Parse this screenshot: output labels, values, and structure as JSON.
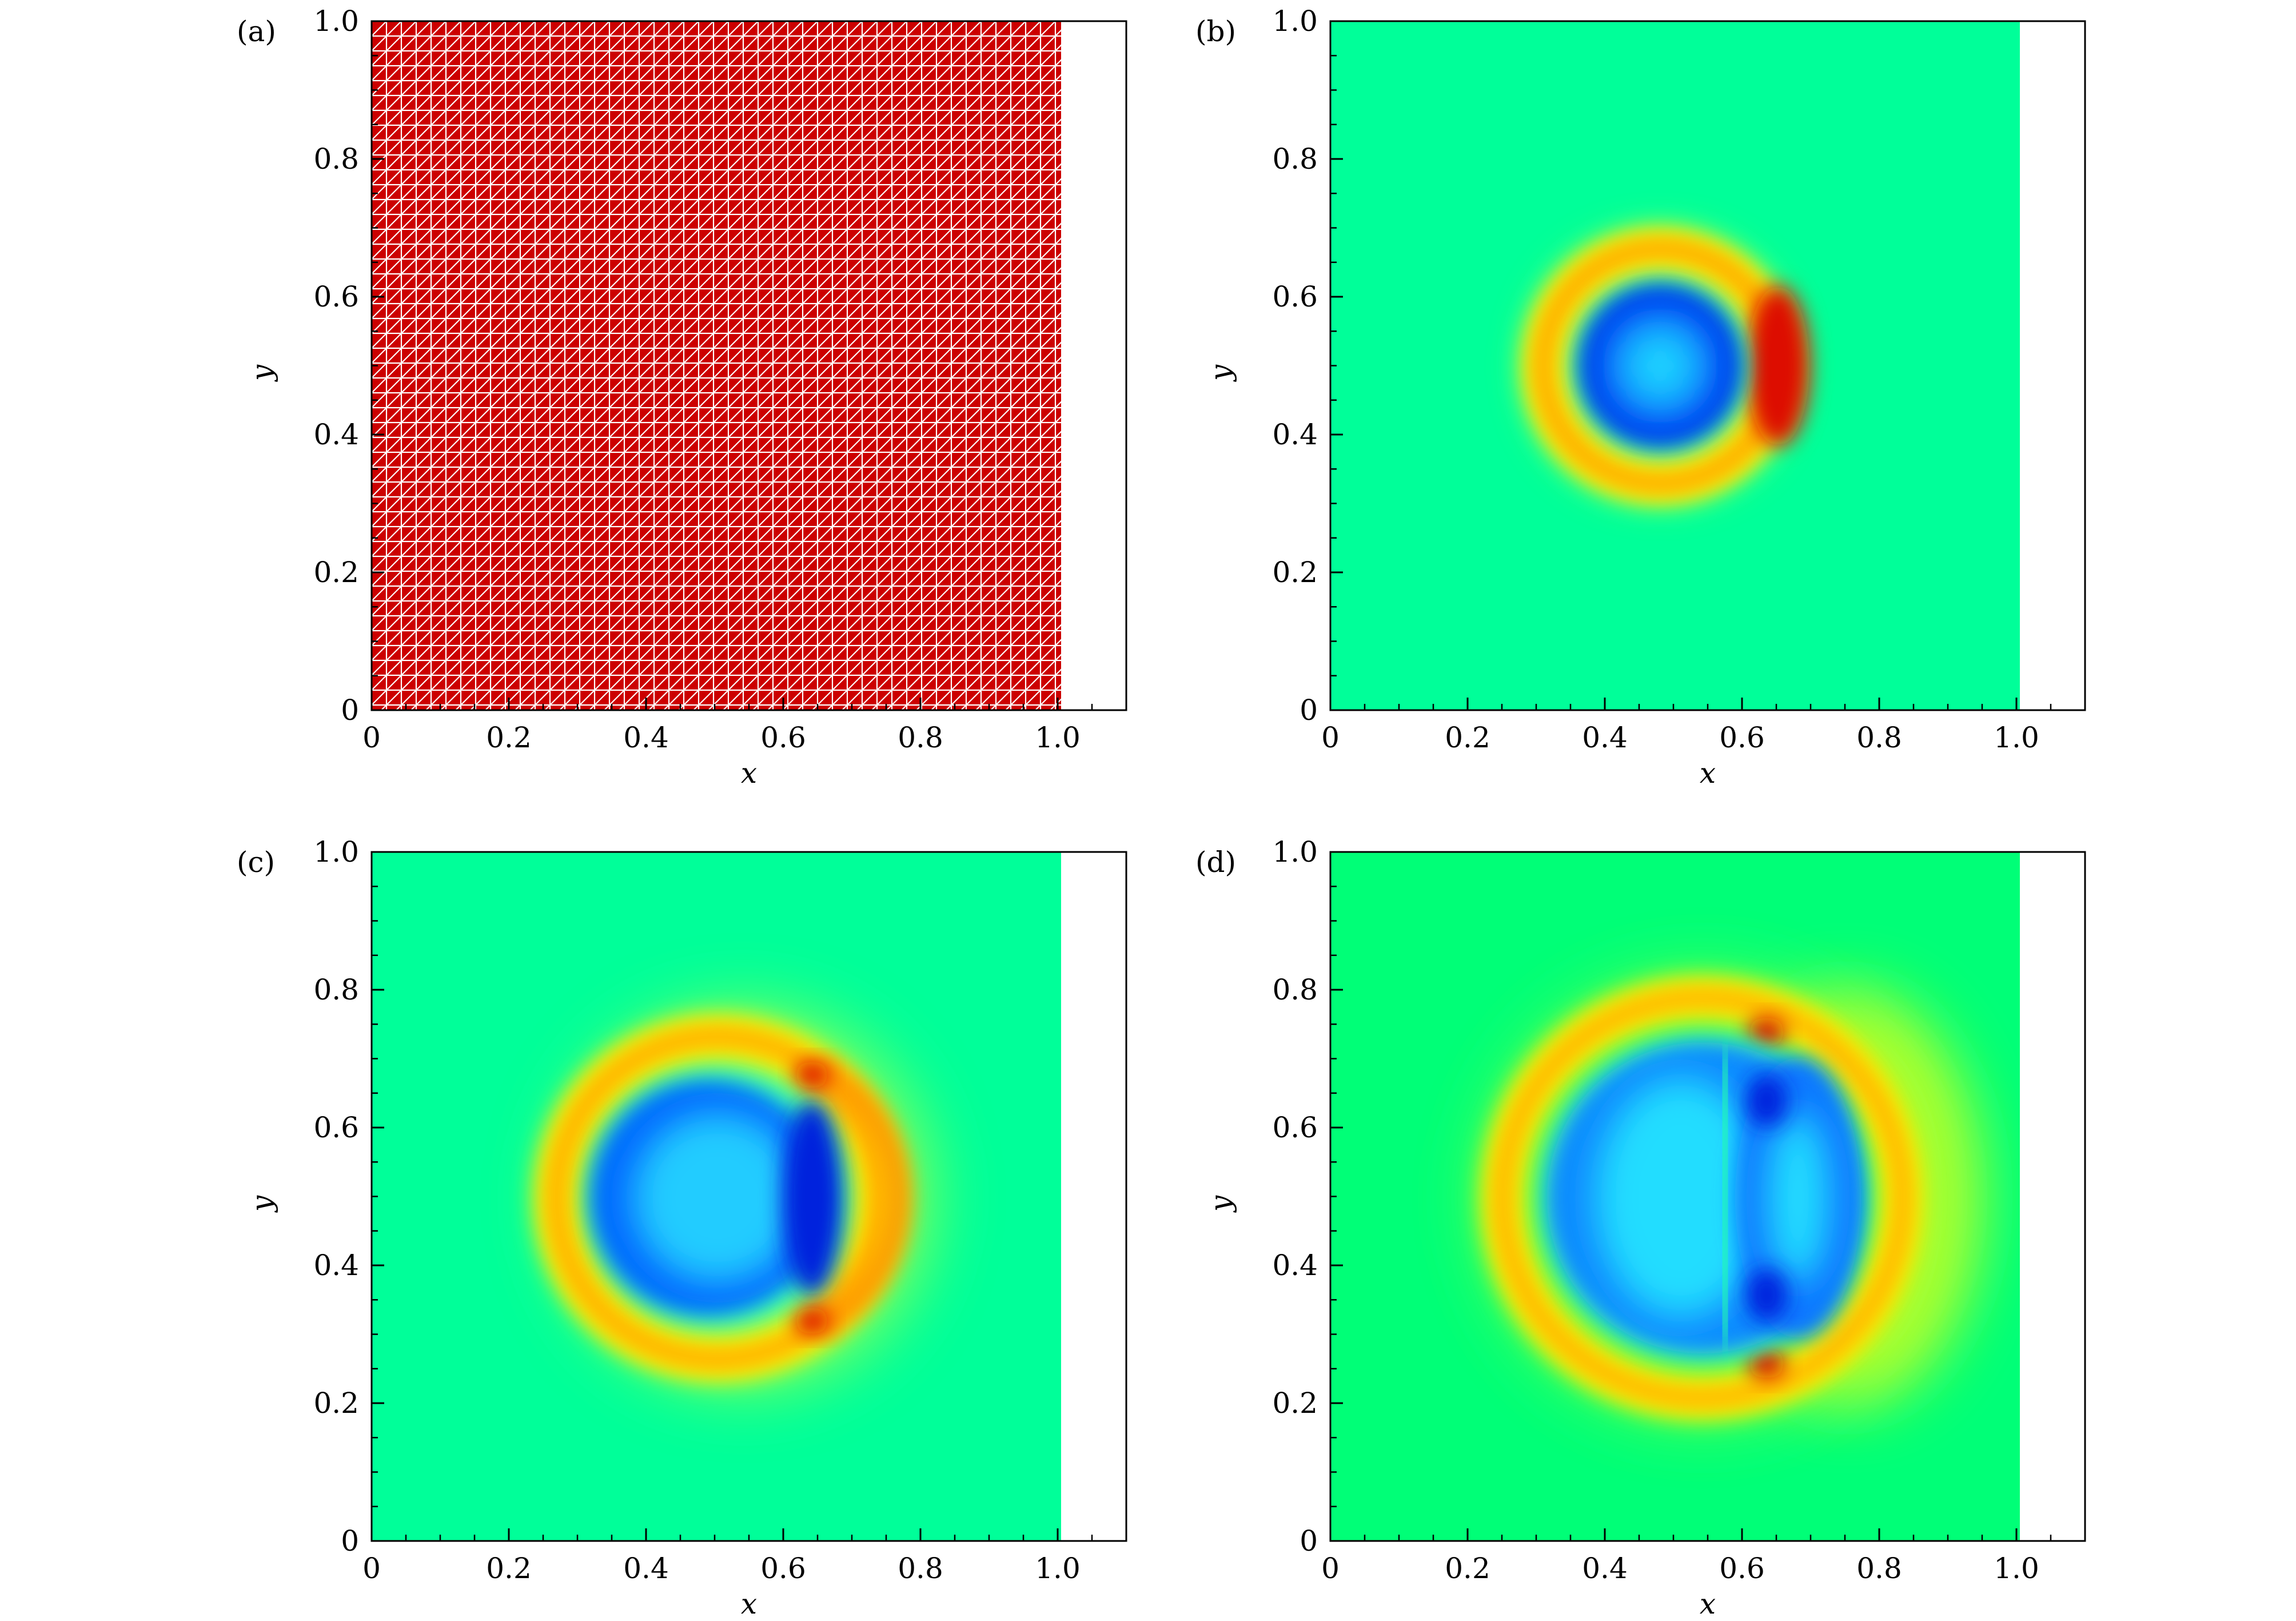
{
  "figure": {
    "panels": [
      {
        "label": "(a)",
        "field": "mesh",
        "mesh_color": "#cc0000",
        "line_color": "#ffffff"
      },
      {
        "label": "(b)",
        "field": "stage1"
      },
      {
        "label": "(c)",
        "field": "stage2"
      },
      {
        "label": "(d)",
        "field": "stage3"
      }
    ],
    "axes": {
      "xlabel": "x",
      "ylabel": "y",
      "xticks": [
        "0",
        "0.2",
        "0.4",
        "0.6",
        "0.8",
        "1.0"
      ],
      "yticks": [
        "0",
        "0.2",
        "0.4",
        "0.6",
        "0.8",
        "1.0"
      ],
      "xlim": [
        0,
        1.1
      ],
      "ylim": [
        0,
        1.0
      ],
      "data_extent_x": [
        0,
        1.0
      ]
    },
    "colors": {
      "background_green": "#00ff99",
      "deep_blue": "#0022dd",
      "cyan": "#22ddff",
      "yellow": "#eeee00",
      "orange": "#ff9900",
      "red": "#dd1100"
    }
  }
}
